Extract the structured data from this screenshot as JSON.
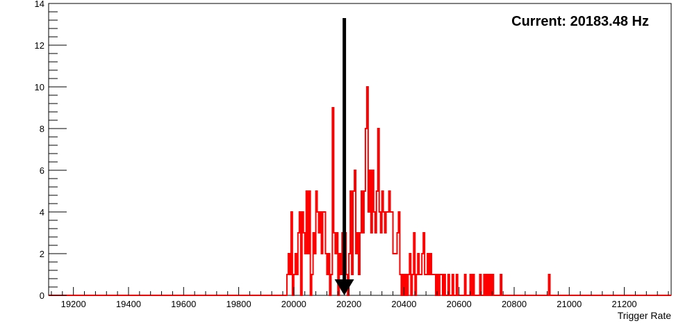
{
  "chart_data": {
    "type": "histogram",
    "title": "",
    "xlabel": "Trigger Rate",
    "ylabel": "",
    "xlim": [
      19110,
      21370
    ],
    "ylim": [
      0,
      14
    ],
    "x_ticks": [
      19200,
      19400,
      19600,
      19800,
      20000,
      20200,
      20400,
      20600,
      20800,
      21000,
      21200
    ],
    "y_ticks": [
      0,
      2,
      4,
      6,
      8,
      10,
      12,
      14
    ],
    "grid": false,
    "series": [
      {
        "color": "#ff0000",
        "bin_width": 5,
        "bins": [
          [
            19975,
            1
          ],
          [
            19980,
            2
          ],
          [
            19985,
            1
          ],
          [
            19990,
            4
          ],
          [
            19995,
            0
          ],
          [
            20000,
            1
          ],
          [
            20005,
            2
          ],
          [
            20010,
            1
          ],
          [
            20015,
            3
          ],
          [
            20020,
            4
          ],
          [
            20025,
            0
          ],
          [
            20030,
            4
          ],
          [
            20035,
            3
          ],
          [
            20040,
            2
          ],
          [
            20045,
            5
          ],
          [
            20050,
            2
          ],
          [
            20055,
            5
          ],
          [
            20060,
            0
          ],
          [
            20065,
            1
          ],
          [
            20070,
            3
          ],
          [
            20075,
            2
          ],
          [
            20080,
            5
          ],
          [
            20085,
            4
          ],
          [
            20090,
            3
          ],
          [
            20095,
            4
          ],
          [
            20100,
            2
          ],
          [
            20105,
            4
          ],
          [
            20110,
            4
          ],
          [
            20115,
            2
          ],
          [
            20120,
            1
          ],
          [
            20125,
            2
          ],
          [
            20130,
            0
          ],
          [
            20135,
            1
          ],
          [
            20140,
            9
          ],
          [
            20145,
            3
          ],
          [
            20150,
            2
          ],
          [
            20155,
            3
          ],
          [
            20160,
            0
          ],
          [
            20165,
            2
          ],
          [
            20170,
            1
          ],
          [
            20175,
            3
          ],
          [
            20180,
            1
          ],
          [
            20185,
            3
          ],
          [
            20190,
            1
          ],
          [
            20195,
            0
          ],
          [
            20200,
            2
          ],
          [
            20205,
            5
          ],
          [
            20210,
            1
          ],
          [
            20215,
            5
          ],
          [
            20220,
            6
          ],
          [
            20225,
            2
          ],
          [
            20230,
            3
          ],
          [
            20235,
            1
          ],
          [
            20240,
            3
          ],
          [
            20245,
            5
          ],
          [
            20250,
            3
          ],
          [
            20255,
            5
          ],
          [
            20260,
            8
          ],
          [
            20265,
            10
          ],
          [
            20270,
            4
          ],
          [
            20275,
            6
          ],
          [
            20280,
            3
          ],
          [
            20285,
            6
          ],
          [
            20290,
            4
          ],
          [
            20295,
            3
          ],
          [
            20300,
            5
          ],
          [
            20305,
            8
          ],
          [
            20310,
            4
          ],
          [
            20315,
            3
          ],
          [
            20320,
            5
          ],
          [
            20325,
            4
          ],
          [
            20330,
            3
          ],
          [
            20335,
            4
          ],
          [
            20340,
            4
          ],
          [
            20345,
            5
          ],
          [
            20350,
            4
          ],
          [
            20355,
            4
          ],
          [
            20360,
            2
          ],
          [
            20365,
            2
          ],
          [
            20370,
            2
          ],
          [
            20375,
            3
          ],
          [
            20380,
            4
          ],
          [
            20385,
            1
          ],
          [
            20390,
            0
          ],
          [
            20395,
            1
          ],
          [
            20400,
            0
          ],
          [
            20405,
            1
          ],
          [
            20410,
            0
          ],
          [
            20415,
            1
          ],
          [
            20420,
            2
          ],
          [
            20425,
            0
          ],
          [
            20430,
            1
          ],
          [
            20435,
            3
          ],
          [
            20440,
            0
          ],
          [
            20445,
            1
          ],
          [
            20450,
            2
          ],
          [
            20455,
            1
          ],
          [
            20460,
            1
          ],
          [
            20465,
            2
          ],
          [
            20470,
            3
          ],
          [
            20475,
            1
          ],
          [
            20480,
            1
          ],
          [
            20485,
            2
          ],
          [
            20490,
            1
          ],
          [
            20495,
            2
          ],
          [
            20500,
            1
          ],
          [
            20505,
            1
          ],
          [
            20510,
            1
          ],
          [
            20515,
            0
          ],
          [
            20520,
            1
          ],
          [
            20525,
            0
          ],
          [
            20530,
            1
          ],
          [
            20535,
            1
          ],
          [
            20540,
            0
          ],
          [
            20545,
            1
          ],
          [
            20550,
            0
          ],
          [
            20555,
            0
          ],
          [
            20560,
            1
          ],
          [
            20565,
            0
          ],
          [
            20570,
            0
          ],
          [
            20575,
            1
          ],
          [
            20580,
            0
          ],
          [
            20585,
            0
          ],
          [
            20590,
            1
          ],
          [
            20595,
            0
          ],
          [
            20600,
            0
          ],
          [
            20605,
            0
          ],
          [
            20610,
            0
          ],
          [
            20615,
            0
          ],
          [
            20620,
            1
          ],
          [
            20625,
            0
          ],
          [
            20630,
            0
          ],
          [
            20635,
            0
          ],
          [
            20640,
            1
          ],
          [
            20645,
            0
          ],
          [
            20650,
            1
          ],
          [
            20655,
            0
          ],
          [
            20660,
            0
          ],
          [
            20665,
            0
          ],
          [
            20670,
            0
          ],
          [
            20675,
            1
          ],
          [
            20680,
            0
          ],
          [
            20685,
            0
          ],
          [
            20690,
            1
          ],
          [
            20695,
            0
          ],
          [
            20700,
            1
          ],
          [
            20705,
            0
          ],
          [
            20710,
            1
          ],
          [
            20715,
            0
          ],
          [
            20720,
            1
          ],
          [
            20725,
            0
          ],
          [
            20730,
            0
          ],
          [
            20735,
            0
          ],
          [
            20740,
            0
          ],
          [
            20745,
            0
          ],
          [
            20750,
            1
          ],
          [
            20755,
            0
          ],
          [
            20760,
            0
          ],
          [
            20765,
            0
          ],
          [
            20770,
            0
          ],
          [
            20775,
            0
          ],
          [
            20780,
            0
          ],
          [
            20785,
            0
          ],
          [
            20790,
            0
          ],
          [
            20795,
            0
          ],
          [
            20800,
            0
          ],
          [
            20805,
            0
          ],
          [
            20810,
            0
          ],
          [
            20815,
            0
          ],
          [
            20820,
            0
          ],
          [
            20825,
            0
          ],
          [
            20830,
            0
          ],
          [
            20835,
            0
          ],
          [
            20840,
            0
          ],
          [
            20845,
            0
          ],
          [
            20850,
            0
          ],
          [
            20855,
            0
          ],
          [
            20860,
            0
          ],
          [
            20865,
            0
          ],
          [
            20870,
            0
          ],
          [
            20875,
            0
          ],
          [
            20880,
            0
          ],
          [
            20885,
            0
          ],
          [
            20890,
            0
          ],
          [
            20895,
            0
          ],
          [
            20900,
            0
          ],
          [
            20905,
            0
          ],
          [
            20910,
            0
          ],
          [
            20915,
            0
          ],
          [
            20920,
            0
          ],
          [
            20925,
            1
          ]
        ]
      }
    ],
    "marker": {
      "type": "arrow-down",
      "x": 20183.48,
      "y_from": 13.3,
      "y_to": 0,
      "color": "#000000"
    },
    "annotations": [
      {
        "text": "Current: 20183.48 Hz",
        "position": "top-right"
      }
    ]
  }
}
